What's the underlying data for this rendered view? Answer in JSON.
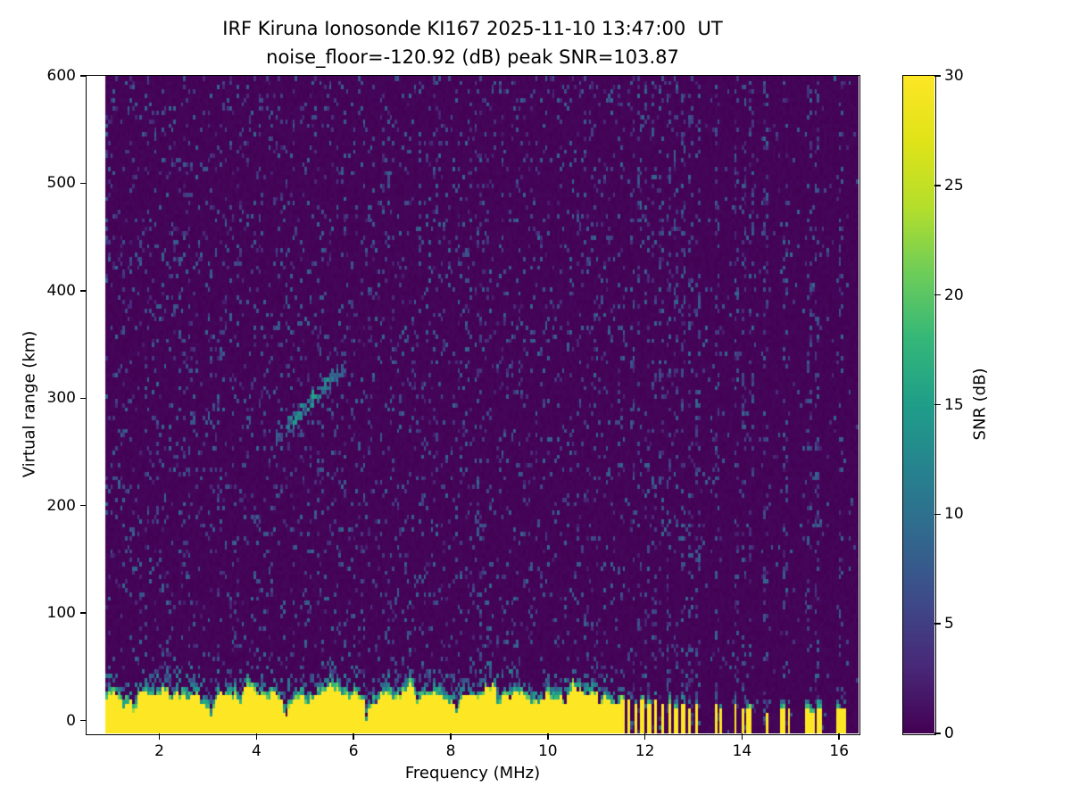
{
  "chart_data": {
    "type": "heatmap",
    "title": "IRF Kiruna Ionosonde KI167 2025-11-10 13:47:00  UT",
    "subtitle": "noise_floor=-120.92 (dB) peak SNR=103.87",
    "station": "KI167",
    "timestamp_ut": "2025-11-10 13:47:00",
    "noise_floor_db": -120.92,
    "peak_snr_db": 103.87,
    "xlabel": "Frequency (MHz)",
    "ylabel": "Virtual range (km)",
    "colorbar_label": "SNR (dB)",
    "colormap": "viridis",
    "xlim": [
      0.5,
      16.4
    ],
    "ylim": [
      -12,
      600
    ],
    "clim": [
      0,
      30
    ],
    "xticks": [
      2,
      4,
      6,
      8,
      10,
      12,
      14,
      16
    ],
    "yticks": [
      0,
      100,
      200,
      300,
      400,
      500,
      600
    ],
    "colorbar_ticks": [
      0,
      5,
      10,
      15,
      20,
      25,
      30
    ],
    "data_start_mhz": 0.9,
    "data_end_mhz": 16.4,
    "features": {
      "background_snr": 0.5,
      "speckle": {
        "density_low": 0.1,
        "density_high": 0.03,
        "snr_min": 2,
        "snr_max": 9
      },
      "ground_band": {
        "end_mhz": 11.62,
        "solid_top_km": 24,
        "transition_km": 14,
        "notches_mhz": [
          1.5,
          2.25,
          3.08,
          3.68,
          4.6,
          5.05,
          6.28,
          7.32,
          8.15,
          9.0,
          10.35,
          11.1
        ],
        "notch_depth_km": 13,
        "notch_width_mhz": 0.05
      },
      "rfi_bars": [
        [
          11.68,
          30
        ],
        [
          11.82,
          28
        ],
        [
          11.96,
          30
        ],
        [
          12.1,
          26
        ],
        [
          12.24,
          30
        ],
        [
          12.38,
          24
        ],
        [
          12.52,
          28
        ],
        [
          12.66,
          22
        ],
        [
          12.8,
          26
        ],
        [
          12.94,
          20
        ],
        [
          13.08,
          24
        ],
        [
          13.48,
          26
        ],
        [
          13.58,
          20
        ],
        [
          13.88,
          24
        ],
        [
          14.02,
          18
        ],
        [
          14.16,
          22
        ],
        [
          14.52,
          14
        ],
        [
          14.86,
          22
        ],
        [
          14.98,
          18
        ],
        [
          15.36,
          20
        ],
        [
          15.46,
          16
        ],
        [
          15.6,
          22
        ],
        [
          16.0,
          20
        ],
        [
          16.1,
          18
        ]
      ],
      "rfi_bar_width_mhz": 0.07,
      "rfi_columns_mhz": [
        11.75,
        11.9,
        12.05,
        12.2,
        12.35,
        12.5,
        12.65,
        12.8,
        12.95,
        13.1,
        13.5,
        13.9,
        14.05,
        14.2,
        14.5,
        14.9,
        15.4,
        15.55,
        16.05
      ],
      "rfi_column_density": 0.2,
      "echo_trace": {
        "f_start_mhz": 4.4,
        "f_end_mhz": 5.8,
        "r_start_km": 262,
        "r_end_km": 330,
        "snr": 15,
        "width_km": 7,
        "density": 0.7
      },
      "faint_streak": {
        "mhz": 7.32,
        "r_start_km": 240,
        "r_end_km": 400,
        "density": 0.12,
        "snr": 5
      }
    }
  }
}
